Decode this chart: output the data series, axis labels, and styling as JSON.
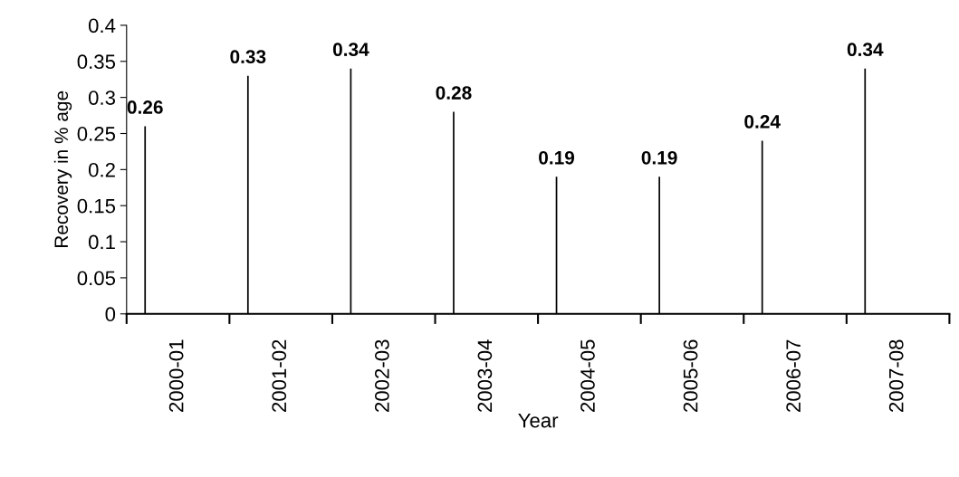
{
  "chart_data": {
    "type": "bar",
    "xlabel": "Year",
    "ylabel": "Recovery in % age",
    "categories": [
      "2000-01",
      "2001-02",
      "2002-03",
      "2003-04",
      "2004-05",
      "2005-06",
      "2006-07",
      "2007-08"
    ],
    "values": [
      0.26,
      0.33,
      0.34,
      0.28,
      0.19,
      0.19,
      0.24,
      0.34
    ],
    "color": "#000000",
    "data_labels": true,
    "grid": false,
    "legend": false,
    "ylim": [
      0,
      0.4
    ],
    "yticks": [
      0,
      0.05,
      0.1,
      0.15,
      0.2,
      0.25,
      0.3,
      0.35,
      0.4
    ]
  }
}
